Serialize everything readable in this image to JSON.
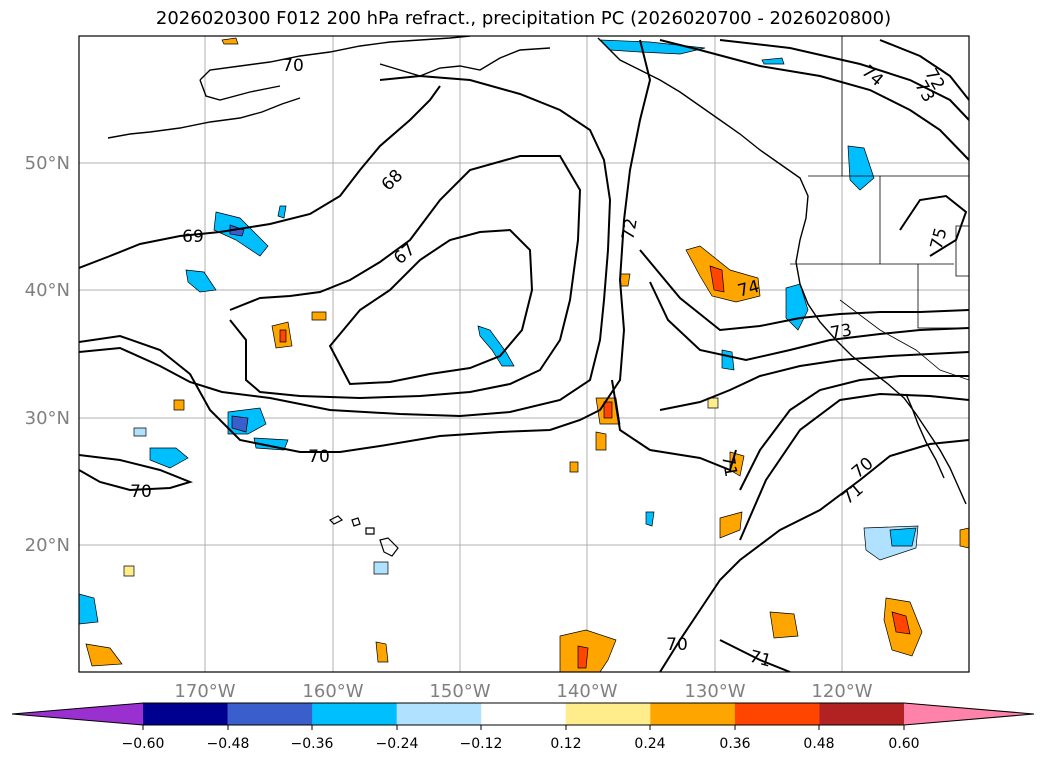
{
  "title": "2026020300 F012 200 hPa refract., precipitation PC (2026020700 - 2026020800)",
  "map": {
    "lat_labels": [
      "50°N",
      "40°N",
      "30°N",
      "20°N"
    ],
    "lon_labels": [
      "170°W",
      "160°W",
      "150°W",
      "140°W",
      "130°W",
      "120°W"
    ],
    "contour_labels": {
      "c70_top": "70",
      "c69": "69",
      "c68": "68",
      "c67": "67",
      "c72": "72",
      "c74_tr": "74",
      "c72_tr": "72",
      "c73_tr": "73",
      "c74_mid": "74",
      "c73_mid": "73",
      "c75": "75",
      "c70_a": "70",
      "c70_b": "70",
      "c71_a": "71",
      "c70_c": "70",
      "c71_b": "71",
      "c70_d": "70",
      "c71_c": "71"
    }
  },
  "colorbar": {
    "ticks": [
      "−0.60",
      "−0.48",
      "−0.36",
      "−0.24",
      "−0.12",
      "0.12",
      "0.24",
      "0.36",
      "0.48",
      "0.60"
    ],
    "colors": [
      "#9b30d0",
      "#000090",
      "#3a5fcd",
      "#00bfff",
      "#b0e2ff",
      "#ffffff",
      "#ffec8b",
      "#ffa500",
      "#ff4500",
      "#b22222",
      "#ff82ab"
    ]
  }
}
